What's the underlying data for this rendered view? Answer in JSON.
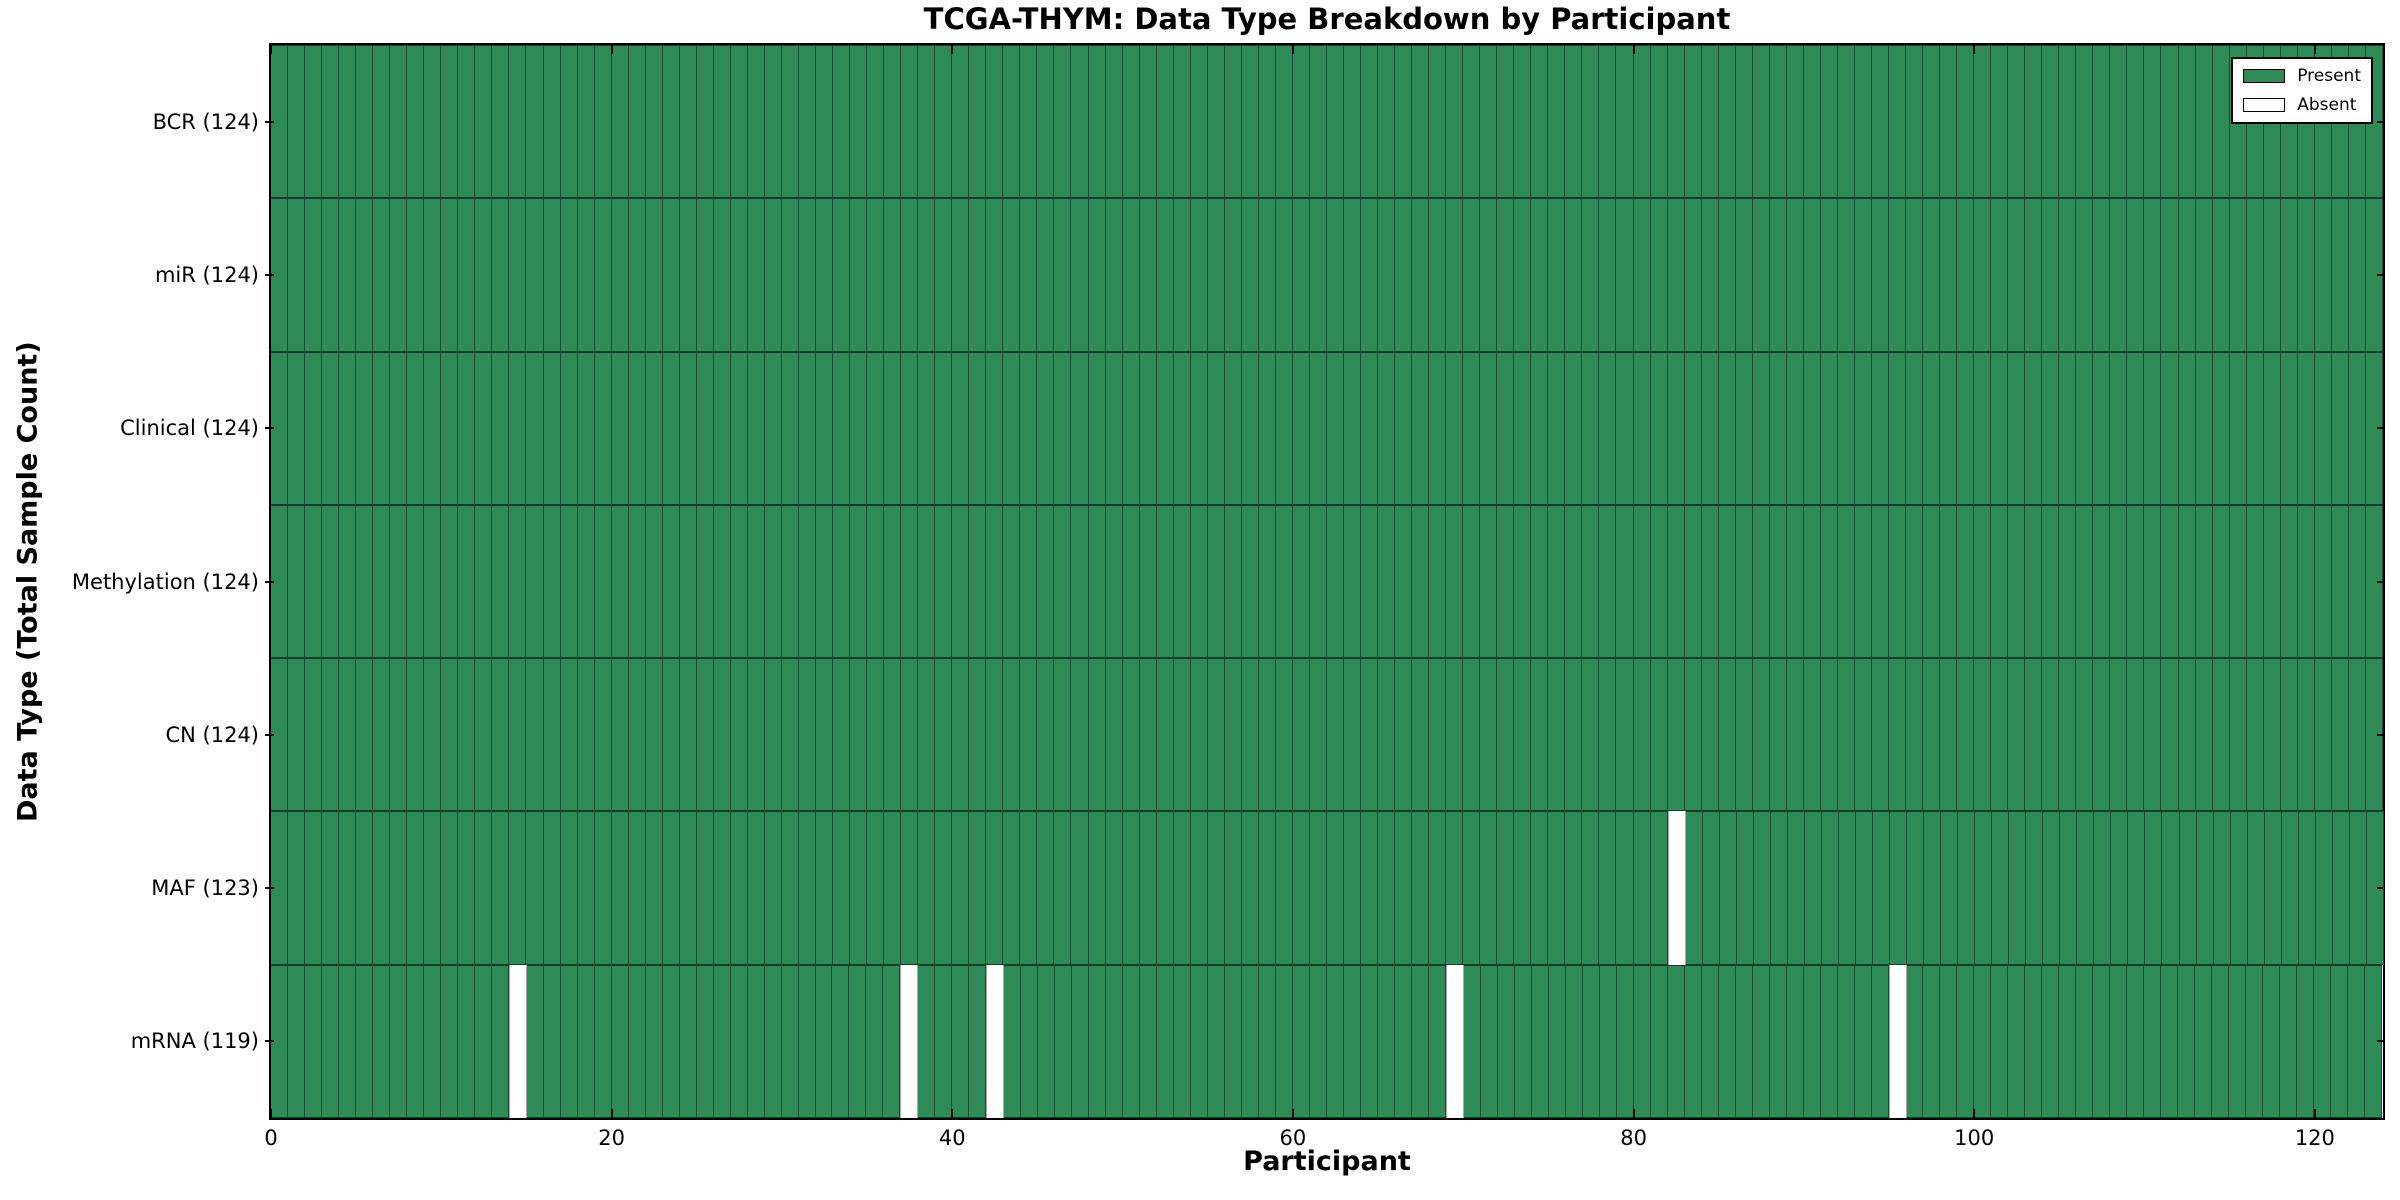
{
  "chart_data": {
    "type": "heatmap",
    "title": "TCGA-THYM: Data Type Breakdown by Participant",
    "xlabel": "Participant",
    "ylabel": "Data Type (Total Sample Count)",
    "x_range": [
      0,
      124
    ],
    "n_participants": 124,
    "x_ticks": [
      0,
      20,
      40,
      60,
      80,
      100,
      120
    ],
    "grid": "cell-edges",
    "legend_position": "upper right",
    "legend": [
      {
        "label": "Present",
        "color": "#2E8B57"
      },
      {
        "label": "Absent",
        "color": "#ffffff"
      }
    ],
    "rows": [
      {
        "label": "BCR (124)",
        "name": "BCR",
        "total": 124,
        "absent_participants": []
      },
      {
        "label": "miR (124)",
        "name": "miR",
        "total": 124,
        "absent_participants": []
      },
      {
        "label": "Clinical (124)",
        "name": "Clinical",
        "total": 124,
        "absent_participants": []
      },
      {
        "label": "Methylation (124)",
        "name": "Methylation",
        "total": 124,
        "absent_participants": []
      },
      {
        "label": "CN (124)",
        "name": "CN",
        "total": 124,
        "absent_participants": []
      },
      {
        "label": "MAF (123)",
        "name": "MAF",
        "total": 123,
        "absent_participants": [
          82
        ]
      },
      {
        "label": "mRNA (119)",
        "name": "mRNA",
        "total": 119,
        "absent_participants": [
          14,
          37,
          42,
          69,
          95
        ]
      }
    ],
    "colors": {
      "present": "#2E8B57",
      "absent": "#ffffff",
      "cell_edge": "#000000",
      "plot_border": "#000000",
      "background": "#ffffff"
    }
  }
}
